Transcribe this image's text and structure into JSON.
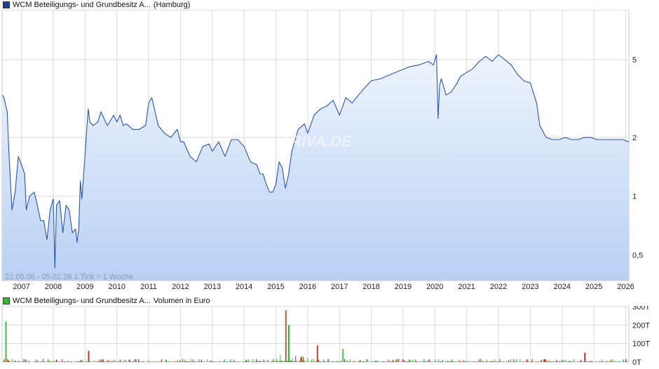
{
  "main_legend": {
    "label": "WCM Beteiligungs- und Grundbesitz A...",
    "suffix": "(Hamburg)",
    "color": "#1f3f99"
  },
  "volume_legend": {
    "label": "WCM Beteiligungs- und Grundbesitz A...",
    "suffix": "Volumen in Euro",
    "color": "#33bb33"
  },
  "range_text": "22.05.06 - 05.02.26   1 Tick = 1 Woche",
  "watermark": "ARIVA.DE",
  "colors": {
    "line": "#2a56a8",
    "fill_top": "#eef4fd",
    "fill_bottom": "#b9d0f3",
    "grid": "#d9d9d9",
    "vol_up": "#33bb33",
    "vol_down": "#cc2222"
  },
  "chart_data": [
    {
      "type": "area",
      "scale": "log",
      "xlim": [
        2006.39,
        2026.1
      ],
      "ylim": [
        0.37,
        9.0
      ],
      "yticks": [
        0.5,
        1,
        2,
        5
      ],
      "ytick_labels": [
        "0,5",
        "1",
        "2",
        "5"
      ],
      "xticks": [
        2007,
        2008,
        2009,
        2010,
        2011,
        2012,
        2013,
        2014,
        2015,
        2016,
        2017,
        2018,
        2019,
        2020,
        2021,
        2022,
        2023,
        2024,
        2025,
        2026
      ],
      "xtick_labels": [
        "2007",
        "2008",
        "2009",
        "2010",
        "2011",
        "2012",
        "2013",
        "2014",
        "2015",
        "2016",
        "2017",
        "2018",
        "2019",
        "2020",
        "2021",
        "2022",
        "2023",
        "2024",
        "2025",
        "2026"
      ],
      "grid": true,
      "series": [
        {
          "x": [
            2006.39,
            2006.45,
            2006.55,
            2006.6,
            2006.7,
            2006.8,
            2006.9,
            2007.0,
            2007.1,
            2007.15,
            2007.25,
            2007.4,
            2007.5,
            2007.6,
            2007.7,
            2007.8,
            2007.9,
            2008.0,
            2008.05,
            2008.1,
            2008.2,
            2008.3,
            2008.4,
            2008.5,
            2008.6,
            2008.7,
            2008.75,
            2008.8,
            2008.85,
            2008.9,
            2009.0,
            2009.05,
            2009.1,
            2009.15,
            2009.25,
            2009.4,
            2009.5,
            2009.7,
            2009.9,
            2010.0,
            2010.1,
            2010.2,
            2010.3,
            2010.5,
            2010.7,
            2010.9,
            2011.0,
            2011.1,
            2011.3,
            2011.5,
            2011.7,
            2011.9,
            2012.0,
            2012.1,
            2012.3,
            2012.5,
            2012.7,
            2012.9,
            2013.0,
            2013.2,
            2013.4,
            2013.6,
            2013.8,
            2014.0,
            2014.2,
            2014.4,
            2014.5,
            2014.6,
            2014.7,
            2014.8,
            2014.9,
            2015.0,
            2015.1,
            2015.2,
            2015.3,
            2015.4,
            2015.5,
            2015.7,
            2015.9,
            2016.0,
            2016.2,
            2016.4,
            2016.6,
            2016.8,
            2017.0,
            2017.2,
            2017.4,
            2017.6,
            2017.8,
            2018.0,
            2018.3,
            2018.6,
            2018.9,
            2019.2,
            2019.5,
            2019.8,
            2019.95,
            2020.05,
            2020.1,
            2020.15,
            2020.2,
            2020.35,
            2020.5,
            2020.7,
            2020.8,
            2021.0,
            2021.2,
            2021.4,
            2021.6,
            2021.8,
            2022.0,
            2022.2,
            2022.4,
            2022.6,
            2022.8,
            2023.0,
            2023.2,
            2023.3,
            2023.5,
            2023.7,
            2023.9,
            2024.1,
            2024.3,
            2024.5,
            2024.7,
            2024.9,
            2025.1,
            2025.3,
            2025.5,
            2025.7,
            2025.9,
            2026.1
          ],
          "values": [
            3.3,
            3.2,
            2.7,
            1.75,
            0.85,
            1.05,
            1.6,
            1.45,
            1.3,
            0.85,
            1.0,
            1.05,
            0.9,
            0.75,
            0.75,
            0.6,
            0.85,
            0.97,
            0.43,
            0.9,
            0.95,
            0.65,
            0.9,
            0.85,
            0.65,
            0.68,
            0.58,
            0.68,
            1.2,
            0.97,
            1.65,
            2.2,
            2.8,
            2.4,
            2.3,
            2.4,
            2.7,
            2.3,
            2.6,
            2.4,
            2.6,
            2.3,
            2.35,
            2.2,
            2.2,
            2.3,
            3.0,
            3.2,
            2.3,
            2.1,
            2.0,
            2.2,
            1.9,
            1.9,
            1.6,
            1.5,
            1.8,
            1.85,
            1.7,
            1.9,
            1.6,
            1.95,
            1.95,
            1.8,
            1.5,
            1.45,
            1.3,
            1.3,
            1.15,
            1.05,
            1.05,
            1.15,
            1.5,
            1.4,
            1.1,
            1.3,
            1.7,
            2.2,
            2.35,
            2.1,
            2.6,
            2.8,
            2.9,
            3.1,
            2.6,
            3.2,
            3.0,
            3.3,
            3.6,
            3.9,
            4.0,
            4.2,
            4.4,
            4.6,
            4.7,
            4.9,
            4.7,
            5.3,
            2.5,
            3.7,
            4.0,
            3.3,
            3.4,
            3.8,
            4.1,
            4.3,
            4.5,
            4.9,
            5.2,
            4.9,
            5.3,
            5.0,
            4.7,
            4.2,
            3.9,
            3.8,
            3.0,
            2.3,
            2.0,
            1.95,
            1.95,
            2.0,
            1.95,
            1.95,
            2.0,
            2.0,
            1.95,
            1.95,
            1.95,
            1.95,
            1.95,
            1.9
          ]
        }
      ]
    },
    {
      "type": "bar",
      "ylim": [
        0,
        300
      ],
      "yticks": [
        0,
        100,
        200,
        300
      ],
      "ytick_labels": [
        "0T",
        "100T",
        "200T",
        "300T"
      ],
      "xlim": [
        2006.39,
        2026.1
      ],
      "grid": true
    }
  ]
}
